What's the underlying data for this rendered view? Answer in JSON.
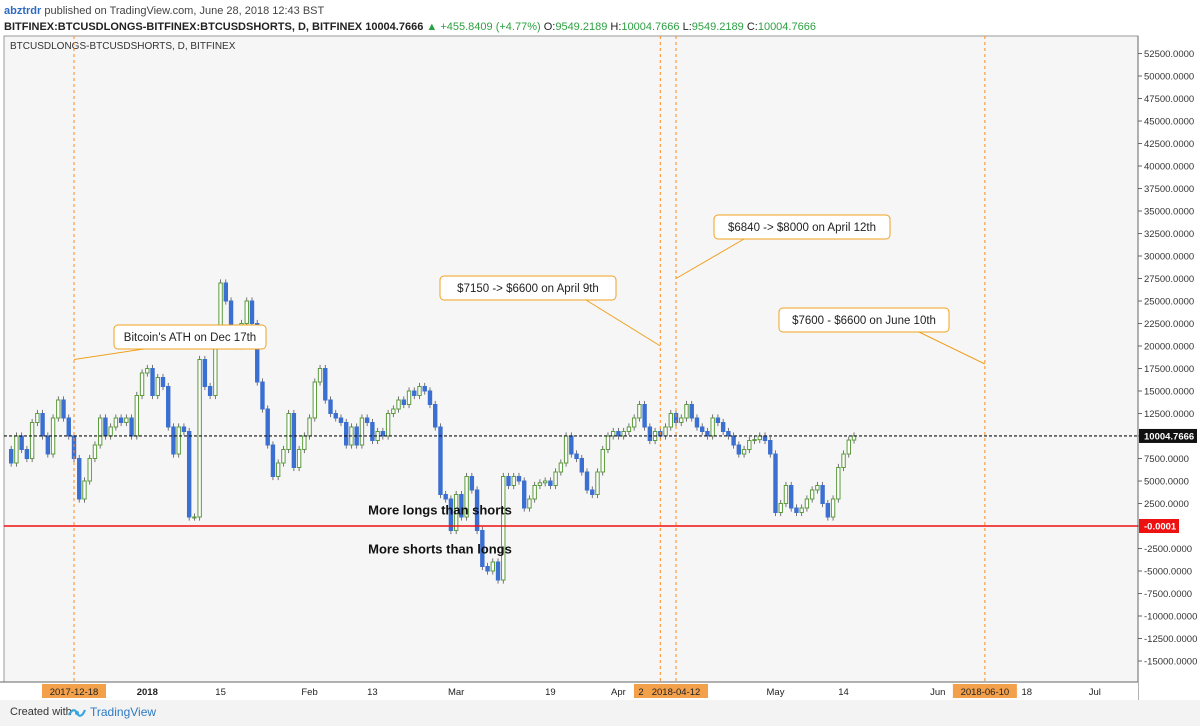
{
  "header": {
    "author": "abztrdr",
    "published": "published on TradingView.com, June 28, 2018 12:43 BST",
    "symbol": "BITFINEX:BTCUSDLONGS-BITFINEX:BTCUSDSHORTS, D",
    "exchange": "BITFINEX",
    "last": "10004.7666",
    "change": "▲ +455.8409 (+4.77%)",
    "o_label": "O:",
    "o_value": "9549.2189",
    "h_label": "H:",
    "h_value": "10004.7666",
    "l_label": "L:",
    "l_value": "9549.2189",
    "c_label": "C:",
    "c_value": "10004.7666"
  },
  "footer": {
    "created_with": "Created with",
    "brand": "TradingView"
  },
  "colors": {
    "up": "#5b9b3b",
    "down": "#3b6fd1",
    "zero_line": "#ee1111",
    "price_line": "#111111",
    "vline": "#ff8b19",
    "callout_border": "#f0a020",
    "pane_bg": "#f6f6f6",
    "axis_text": "#333333",
    "date_highlight_bg": "#f3a04a"
  },
  "chart_data": {
    "type": "candlestick",
    "title": "BTCUSDLONGS-BTCUSDSHORTS, D, BITFINEX",
    "ylim": [
      -17500,
      55000
    ],
    "yticks": [
      "52500.0000",
      "50000.0000",
      "47500.0000",
      "45000.0000",
      "42500.0000",
      "40000.0000",
      "37500.0000",
      "35000.0000",
      "32500.0000",
      "30000.0000",
      "27500.0000",
      "25000.0000",
      "22500.0000",
      "20000.0000",
      "17500.0000",
      "15000.0000",
      "12500.0000",
      "10000.0000",
      "7500.0000",
      "5000.0000",
      "2500.0000",
      "0.0000",
      "-2500.0000",
      "-5000.0000",
      "-7500.0000",
      "-10000.0000",
      "-12500.0000",
      "-15000.0000"
    ],
    "ytick_values": [
      52500,
      50000,
      47500,
      45000,
      42500,
      40000,
      37500,
      35000,
      32500,
      30000,
      27500,
      25000,
      22500,
      20000,
      17500,
      15000,
      12500,
      10000,
      7500,
      5000,
      2500,
      0,
      -2500,
      -5000,
      -7500,
      -10000,
      -12500,
      -15000
    ],
    "xticks": [
      {
        "label": "2017-12-18",
        "date": "2017-12-18",
        "highlight": true
      },
      {
        "label": "2018",
        "date": "2018-01-01",
        "bold": true
      },
      {
        "label": "15",
        "date": "2018-01-15"
      },
      {
        "label": "Feb",
        "date": "2018-02-01"
      },
      {
        "label": "13",
        "date": "2018-02-13"
      },
      {
        "label": "Mar",
        "date": "2018-03-01"
      },
      {
        "label": "19",
        "date": "2018-03-19"
      },
      {
        "label": "Apr",
        "date": "2018-04-01"
      },
      {
        "label": "201",
        "date": "2018-04-09",
        "highlight": true
      },
      {
        "label": "2018-04-12",
        "date": "2018-04-12",
        "highlight": true
      },
      {
        "label": "May",
        "date": "2018-05-01"
      },
      {
        "label": "14",
        "date": "2018-05-14"
      },
      {
        "label": "Jun",
        "date": "2018-06-01"
      },
      {
        "label": "2018-06-10",
        "date": "2018-06-10",
        "highlight": true
      },
      {
        "label": "18",
        "date": "2018-06-18"
      },
      {
        "label": "Jul",
        "date": "2018-07-01"
      }
    ],
    "start_date": "2017-12-01",
    "closes": [
      13500,
      5000,
      5500,
      7000,
      8500,
      7000,
      10000,
      8500,
      7500,
      11500,
      12500,
      10000,
      8000,
      12000,
      14000,
      12000,
      10000,
      7500,
      3000,
      5000,
      7500,
      9000,
      12000,
      10000,
      11000,
      12000,
      11500,
      12000,
      10000,
      14500,
      17000,
      17500,
      14500,
      16500,
      15500,
      11000,
      8000,
      11000,
      10500,
      1000,
      1000,
      18500,
      15500,
      14500,
      21000,
      27000,
      25000,
      22000,
      20000,
      22500,
      25000,
      22500,
      16000,
      13000,
      9000,
      5500,
      7000,
      8500,
      12500,
      6500,
      8500,
      10000,
      12000,
      16000,
      17500,
      14000,
      12500,
      12000,
      11500,
      9000,
      11000,
      9000,
      12000,
      11500,
      9500,
      10500,
      10000,
      12500,
      13000,
      14000,
      13500,
      15000,
      14500,
      15500,
      15000,
      13500,
      11000,
      3500,
      3000,
      -500,
      3500,
      1000,
      5500,
      4000,
      -500,
      -4500,
      -5000,
      -4000,
      -6000,
      5500,
      4500,
      5500,
      5000,
      2000,
      3000,
      4500,
      4800,
      5000,
      4500,
      6000,
      7000,
      10000,
      8000,
      7500,
      6000,
      4000,
      3500,
      6000,
      8500,
      10000,
      10500,
      10000,
      10500,
      11000,
      12000,
      13500,
      11000,
      9500,
      10500,
      10000,
      11000,
      12500,
      11500,
      12000,
      13500,
      12000,
      11000,
      10500,
      10000,
      12000,
      11500,
      10500,
      10000,
      9000,
      8000,
      8500,
      9500,
      9600,
      10000,
      9500,
      8000,
      1500,
      2500,
      4500,
      2000,
      1500,
      2000,
      3000,
      4000,
      4500,
      2500,
      1000,
      3000,
      6500,
      8000,
      9549,
      10004.7666
    ],
    "reference_lines": [
      {
        "value": 10004.7666,
        "label": "10004.7666",
        "style": "dashed"
      },
      {
        "value": -0.0001,
        "label": "-0.0001",
        "style": "solid"
      }
    ],
    "vertical_markers": [
      "2017-12-18",
      "2018-04-09",
      "2018-04-12",
      "2018-06-10"
    ],
    "annotations": [
      {
        "text": "Bitcoin's ATH on Dec 17th",
        "target": "2017-12-18",
        "target_value": 18500
      },
      {
        "text": "$7150 -> $6600 on April 9th",
        "target": "2018-04-09",
        "target_value": 20000
      },
      {
        "text": "$6840 -> $8000 on April 12th",
        "target": "2018-04-12",
        "target_value": 27500
      },
      {
        "text": "$7600 - $6600 on June 10th",
        "target": "2018-06-10",
        "target_value": 18000
      }
    ],
    "region_labels": [
      {
        "text": "More longs than shorts",
        "value": 1700
      },
      {
        "text": "More shorts than longs",
        "value": -2600
      }
    ]
  }
}
